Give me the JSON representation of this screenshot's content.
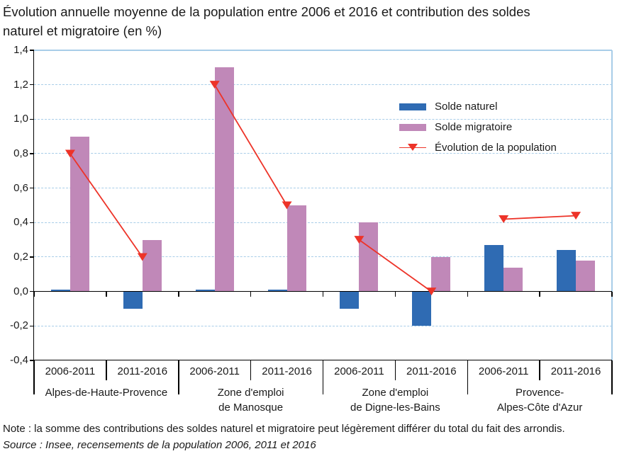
{
  "title": {
    "line1": "Évolution annuelle moyenne de la population entre 2006 et 2016 et contribution des soldes",
    "line2": "naturel et migratoire (en %)"
  },
  "note": "Note : la somme des contributions des soldes naturel et migratoire peut légèrement différer du total du fait des arrondis.",
  "source": "Source : Insee, recensements de la population 2006, 2011 et 2016",
  "colors": {
    "solde_naturel": "#2f6bb3",
    "solde_migratoire": "#c088b8",
    "evolution_line": "#ed3328",
    "gridline": "#a8cde8",
    "plot_border": "#a8cde8",
    "axis": "#000000",
    "text": "#1a1a1a"
  },
  "legend": [
    {
      "label": "Solde naturel",
      "type": "bar",
      "color_key": "solde_naturel"
    },
    {
      "label": "Solde migratoire",
      "type": "bar",
      "color_key": "solde_migratoire"
    },
    {
      "label": "Évolution de la population",
      "type": "line-marker",
      "color_key": "evolution_line"
    }
  ],
  "chart_data": {
    "type": "bar",
    "unit": "% per year",
    "periods": [
      "2006-2011",
      "2011-2016"
    ],
    "groups": [
      {
        "label": "Alpes-de-Haute-Provence",
        "label_lines": [
          "Alpes-de-Haute-Provence"
        ]
      },
      {
        "label": "Zone d'emploi de Manosque",
        "label_lines": [
          "Zone d'emploi",
          "de Manosque"
        ]
      },
      {
        "label": "Zone d'emploi de Digne-les-Bains",
        "label_lines": [
          "Zone d'emploi",
          "de Digne-les-Bains"
        ]
      },
      {
        "label": "Provence-Alpes-Côte d'Azur",
        "label_lines": [
          "Provence-",
          "Alpes-Côte d'Azur"
        ]
      }
    ],
    "categories": [
      "2006-2011",
      "2011-2016",
      "2006-2011",
      "2011-2016",
      "2006-2011",
      "2011-2016",
      "2006-2011",
      "2011-2016"
    ],
    "series": [
      {
        "name": "Solde naturel",
        "type": "bar",
        "color_key": "solde_naturel",
        "values": [
          0.01,
          -0.1,
          0.01,
          0.01,
          -0.1,
          -0.2,
          0.27,
          0.24
        ]
      },
      {
        "name": "Solde migratoire",
        "type": "bar",
        "color_key": "solde_migratoire",
        "values": [
          0.9,
          0.3,
          1.3,
          0.5,
          0.4,
          0.2,
          0.14,
          0.18
        ]
      },
      {
        "name": "Évolution de la population",
        "type": "line",
        "color_key": "evolution_line",
        "values": [
          0.8,
          0.2,
          1.2,
          0.5,
          0.3,
          0.0,
          0.42,
          0.44
        ]
      }
    ],
    "ylim": [
      -0.4,
      1.4
    ],
    "yticks": [
      {
        "v": 1.4,
        "label": "1,4"
      },
      {
        "v": 1.2,
        "label": "1,2"
      },
      {
        "v": 1.0,
        "label": "1,0"
      },
      {
        "v": 0.8,
        "label": "0,8"
      },
      {
        "v": 0.6,
        "label": "0,6"
      },
      {
        "v": 0.4,
        "label": "0,4"
      },
      {
        "v": 0.2,
        "label": "0,2"
      },
      {
        "v": 0.0,
        "label": "0,0"
      },
      {
        "v": -0.2,
        "label": "-0,2"
      },
      {
        "v": -0.4,
        "label": "-0,4"
      }
    ],
    "grid": "horizontal-dashed",
    "legend_position": "inside-top-right",
    "line_connects_within_groups_only": true
  }
}
